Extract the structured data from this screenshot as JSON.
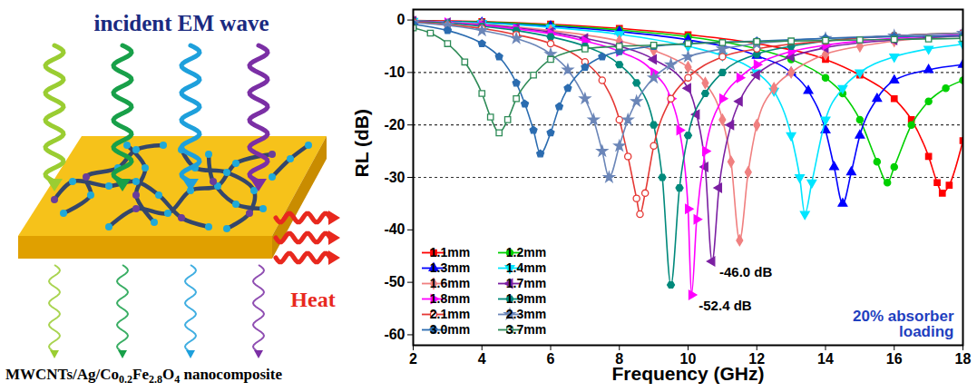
{
  "illustration": {
    "title": "incident EM wave",
    "heat_label": "Heat",
    "caption": [
      {
        "text": "MWCNTs/Ag/Co"
      },
      {
        "text": "0.2",
        "subscript": true
      },
      {
        "text": "Fe"
      },
      {
        "text": "2.8",
        "subscript": true
      },
      {
        "text": "O"
      },
      {
        "text": "4",
        "subscript": true
      },
      {
        "text": " nanocomposite"
      }
    ]
  },
  "chart_data": {
    "type": "line",
    "x_label": "Frequency (GHz)",
    "y_label": "RL (dB)",
    "xlim": [
      2,
      18
    ],
    "xticks": [
      2,
      4,
      6,
      8,
      10,
      12,
      14,
      16,
      18
    ],
    "ylim": [
      -62,
      2
    ],
    "yticks": [
      0,
      -10,
      -20,
      -30,
      -40,
      -50,
      -60
    ],
    "reference_lines": [
      -10,
      -20,
      -30
    ],
    "legend": "bottom-left",
    "annotations": [
      {
        "text": "-46.0 dB",
        "x": 10.7,
        "y": -46.0,
        "color": "#000000"
      },
      {
        "text": "-52.4 dB",
        "x": 10.1,
        "y": -52.4,
        "color": "#000000"
      },
      {
        "text": "20% absorber loading",
        "color": "#1f3fbf"
      }
    ],
    "series": [
      {
        "name": "1.1mm",
        "color": "#ff0000",
        "marker": "square",
        "x": [
          2,
          4,
          6,
          8,
          10,
          12,
          14,
          15,
          16,
          16.5,
          17,
          17.25,
          17.4,
          17.6,
          18
        ],
        "values": [
          -0.1,
          -0.3,
          -0.8,
          -1.6,
          -2.8,
          -4.5,
          -7.5,
          -10.5,
          -15,
          -19,
          -26,
          -31,
          -33,
          -31.5,
          -23
        ]
      },
      {
        "name": "1.2mm",
        "color": "#00d000",
        "marker": "circle",
        "x": [
          2,
          4,
          6,
          8,
          10,
          12,
          13,
          14,
          14.5,
          15,
          15.5,
          15.8,
          16,
          16.5,
          17,
          17.5,
          18
        ],
        "values": [
          -0.2,
          -0.4,
          -1,
          -1.9,
          -3.2,
          -5.5,
          -7.5,
          -11,
          -14,
          -19,
          -27,
          -31,
          -28,
          -20,
          -15.5,
          -13,
          -11.5
        ]
      },
      {
        "name": "1.3mm",
        "color": "#0000ff",
        "marker": "triangle-up",
        "x": [
          2,
          4,
          6,
          8,
          10,
          12,
          13,
          13.5,
          14,
          14.25,
          14.5,
          14.75,
          15,
          15.5,
          16,
          17,
          18
        ],
        "values": [
          -0.2,
          -0.5,
          -1.2,
          -2.2,
          -3.8,
          -6.8,
          -10,
          -13.5,
          -21,
          -28,
          -35,
          -29,
          -22,
          -15,
          -11.5,
          -9.5,
          -8.5
        ]
      },
      {
        "name": "1.4mm",
        "color": "#00e5ff",
        "marker": "triangle-down",
        "x": [
          2,
          4,
          6,
          8,
          10,
          11,
          12,
          12.5,
          13,
          13.25,
          13.4,
          13.6,
          14,
          14.5,
          15,
          16,
          17,
          18
        ],
        "values": [
          -0.2,
          -0.6,
          -1.4,
          -2.7,
          -5,
          -6.8,
          -10,
          -13.5,
          -22,
          -30,
          -37,
          -31,
          -19,
          -13,
          -10,
          -7,
          -5.5,
          -4.6
        ]
      },
      {
        "name": "1.6mm",
        "color": "#f08080",
        "marker": "diamond",
        "x": [
          2,
          4,
          6,
          8,
          9,
          10,
          10.5,
          11,
          11.25,
          11.5,
          11.75,
          12,
          12.5,
          13,
          14,
          15,
          16,
          18
        ],
        "values": [
          -0.2,
          -0.8,
          -2,
          -4,
          -5.8,
          -9,
          -12,
          -19,
          -27,
          -42,
          -29,
          -20,
          -13,
          -10,
          -6.5,
          -5,
          -4,
          -3
        ]
      },
      {
        "name": "1.7mm",
        "color": "#7b1fa2",
        "marker": "triangle-left",
        "x": [
          2,
          3,
          4,
          5,
          6,
          7,
          8,
          9,
          10,
          10.25,
          10.5,
          10.7,
          10.9,
          11.25,
          11.5,
          12,
          13,
          14,
          16,
          18
        ],
        "values": [
          -0.2,
          -0.5,
          -0.9,
          -1.5,
          -2.3,
          -3.5,
          -5,
          -7.5,
          -13,
          -18,
          -28,
          -46,
          -32,
          -20,
          -15.5,
          -10.5,
          -7,
          -5.3,
          -3.8,
          -3
        ]
      },
      {
        "name": "1.8mm",
        "color": "#ff00ff",
        "marker": "triangle-right",
        "x": [
          2,
          3,
          4,
          5,
          6,
          7,
          8,
          9,
          9.5,
          9.75,
          10,
          10.1,
          10.25,
          10.5,
          11,
          11.5,
          12,
          13,
          14,
          16,
          18
        ],
        "values": [
          -0.3,
          -0.5,
          -1,
          -1.7,
          -2.6,
          -4,
          -6,
          -10,
          -15,
          -21,
          -36,
          -52.4,
          -38,
          -25,
          -15,
          -11,
          -8.5,
          -6,
          -4.8,
          -3.5,
          -2.8
        ]
      },
      {
        "name": "1.9mm",
        "color": "#00897b",
        "marker": "hexagon",
        "x": [
          2,
          3,
          4,
          5,
          6,
          7,
          8,
          8.5,
          9,
          9.25,
          9.5,
          9.75,
          10,
          10.5,
          11,
          12,
          13,
          14,
          16,
          18
        ],
        "values": [
          -0.3,
          -0.6,
          -1.2,
          -2,
          -3.2,
          -5,
          -8.5,
          -12,
          -20,
          -30,
          -50.5,
          -32,
          -22,
          -14,
          -10,
          -6.5,
          -5,
          -4,
          -3,
          -2.5
        ]
      },
      {
        "name": "2.1mm",
        "color": "#e53935",
        "marker": "circle-open",
        "x": [
          2,
          3,
          4,
          5,
          6,
          7,
          7.5,
          8,
          8.25,
          8.5,
          8.6,
          8.75,
          9,
          9.5,
          10,
          11,
          12,
          14,
          16,
          18
        ],
        "values": [
          -0.4,
          -0.9,
          -1.6,
          -2.8,
          -4.5,
          -8,
          -11.5,
          -19,
          -26,
          -34,
          -37,
          -33,
          -24,
          -15,
          -11,
          -7,
          -5.5,
          -4,
          -3,
          -2.5
        ]
      },
      {
        "name": "2.3mm",
        "color": "#6b86b8",
        "marker": "star",
        "x": [
          2,
          3,
          4,
          5,
          6,
          6.5,
          7,
          7.25,
          7.5,
          7.7,
          8,
          8.25,
          8.5,
          9,
          9.5,
          10,
          11,
          12,
          14,
          16,
          18
        ],
        "values": [
          -0.5,
          -1,
          -2,
          -3.5,
          -6.5,
          -9.5,
          -15,
          -19,
          -25,
          -30,
          -24,
          -19,
          -15.5,
          -11,
          -8.5,
          -7,
          -5.5,
          -4.5,
          -3.5,
          -3,
          -2.5
        ]
      },
      {
        "name": "3.0mm",
        "color": "#2b6cb0",
        "marker": "pentagon",
        "x": [
          2,
          3,
          4,
          4.5,
          5,
          5.25,
          5.5,
          5.7,
          6,
          6.25,
          6.5,
          7,
          7.5,
          8,
          9,
          10,
          12,
          14,
          16,
          18
        ],
        "values": [
          -0.8,
          -2,
          -4.5,
          -7,
          -12,
          -16,
          -21,
          -25.5,
          -21.5,
          -16.5,
          -13,
          -9,
          -7,
          -6,
          -5,
          -4.5,
          -4,
          -3.5,
          -3.2,
          -3
        ]
      },
      {
        "name": "3.7mm",
        "color": "#2e8b57",
        "marker": "square-open",
        "x": [
          2,
          2.5,
          3,
          3.5,
          4,
          4.25,
          4.5,
          4.75,
          5,
          5.5,
          6,
          7,
          8,
          9,
          10,
          11,
          12,
          13,
          14,
          15,
          16,
          17,
          18
        ],
        "values": [
          -1.5,
          -2.5,
          -4.5,
          -8,
          -14,
          -18.5,
          -21.5,
          -19,
          -15,
          -10.5,
          -7.5,
          -5.5,
          -5,
          -4.8,
          -4.5,
          -4.3,
          -4.1,
          -4,
          -3.9,
          -3.8,
          -3.7,
          -3.6,
          -3.5
        ]
      }
    ]
  }
}
